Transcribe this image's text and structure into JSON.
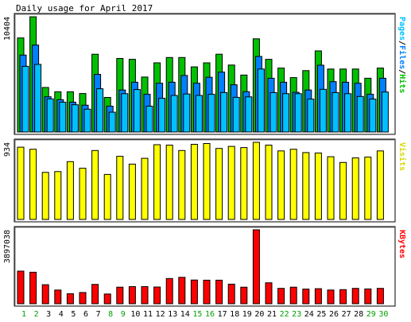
{
  "chart_data": {
    "title": "Daily usage for April 2017",
    "type": "bar",
    "x": [
      "1",
      "2",
      "3",
      "4",
      "5",
      "6",
      "7",
      "8",
      "9",
      "10",
      "11",
      "12",
      "13",
      "14",
      "15",
      "16",
      "17",
      "18",
      "19",
      "20",
      "21",
      "22",
      "23",
      "24",
      "25",
      "26",
      "27",
      "28",
      "29",
      "30"
    ],
    "weekend_days": [
      "1",
      "2",
      "8",
      "9",
      "15",
      "16",
      "22",
      "23",
      "29",
      "30"
    ],
    "panels": [
      {
        "id": "usage",
        "ylabel_parts": [
          {
            "text": "Pages",
            "color": "#00c0ff"
          },
          {
            "text": "/",
            "color": "#000000"
          },
          {
            "text": "Files",
            "color": "#0080ff"
          },
          {
            "text": "/",
            "color": "#000000"
          },
          {
            "text": "Hits",
            "color": "#00c000"
          }
        ],
        "ymax_label": "10404",
        "ylim": [
          0,
          10404
        ],
        "series": [
          {
            "name": "Hits",
            "color": "#00c000",
            "values": [
              8490,
              10400,
              4020,
              3620,
              3620,
              3470,
              7020,
              3120,
              6640,
              6560,
              4960,
              6240,
              6720,
              6720,
              5880,
              6240,
              7020,
              6040,
              5140,
              8410,
              6560,
              5770,
              4910,
              5540,
              7320,
              5680,
              5680,
              5680,
              4850,
              5770
            ]
          },
          {
            "name": "Files",
            "color": "#0080ff",
            "values": [
              6940,
              7840,
              3180,
              2910,
              2690,
              2420,
              5200,
              2330,
              3790,
              4490,
              3400,
              4400,
              4490,
              5100,
              4400,
              4940,
              5400,
              4260,
              3640,
              6820,
              4850,
              4490,
              3580,
              3790,
              6030,
              4540,
              4490,
              4400,
              3400,
              4850
            ]
          },
          {
            "name": "Pages",
            "color": "#00c0ff",
            "values": [
              5930,
              6100,
              2990,
              2690,
              2460,
              2060,
              3900,
              1790,
              3460,
              3830,
              2330,
              3040,
              3300,
              3430,
              3300,
              3400,
              3560,
              3130,
              3170,
              5680,
              3550,
              3460,
              3460,
              2970,
              3850,
              3560,
              3460,
              3210,
              2970,
              3610
            ]
          }
        ]
      },
      {
        "id": "visits",
        "ylabel_parts": [
          {
            "text": "Visits",
            "color": "#d8d800"
          }
        ],
        "ymax_label": "934",
        "ylim": [
          0,
          934
        ],
        "series": [
          {
            "name": "Visits",
            "color": "#ffff00",
            "values": [
              875,
              850,
              570,
              580,
              700,
              620,
              835,
              545,
              765,
              670,
              740,
              905,
              900,
              835,
              910,
              920,
              860,
              885,
              870,
              934,
              900,
              830,
              850,
              810,
              805,
              760,
              690,
              745,
              755,
              830
            ]
          }
        ]
      },
      {
        "id": "kbytes",
        "ylabel_parts": [
          {
            "text": "KBytes",
            "color": "#ff0000"
          }
        ],
        "ymax_label": "3897038",
        "ylim": [
          0,
          3897038
        ],
        "series": [
          {
            "name": "KBytes",
            "color": "#ff0000",
            "values": [
              1720000,
              1660000,
              1000000,
              720000,
              530000,
              590000,
              1020000,
              510000,
              870000,
              900000,
              900000,
              880000,
              1330000,
              1390000,
              1250000,
              1240000,
              1240000,
              1030000,
              870000,
              3897038,
              1100000,
              810000,
              870000,
              770000,
              790000,
              720000,
              740000,
              810000,
              780000,
              810000
            ]
          }
        ]
      }
    ]
  }
}
